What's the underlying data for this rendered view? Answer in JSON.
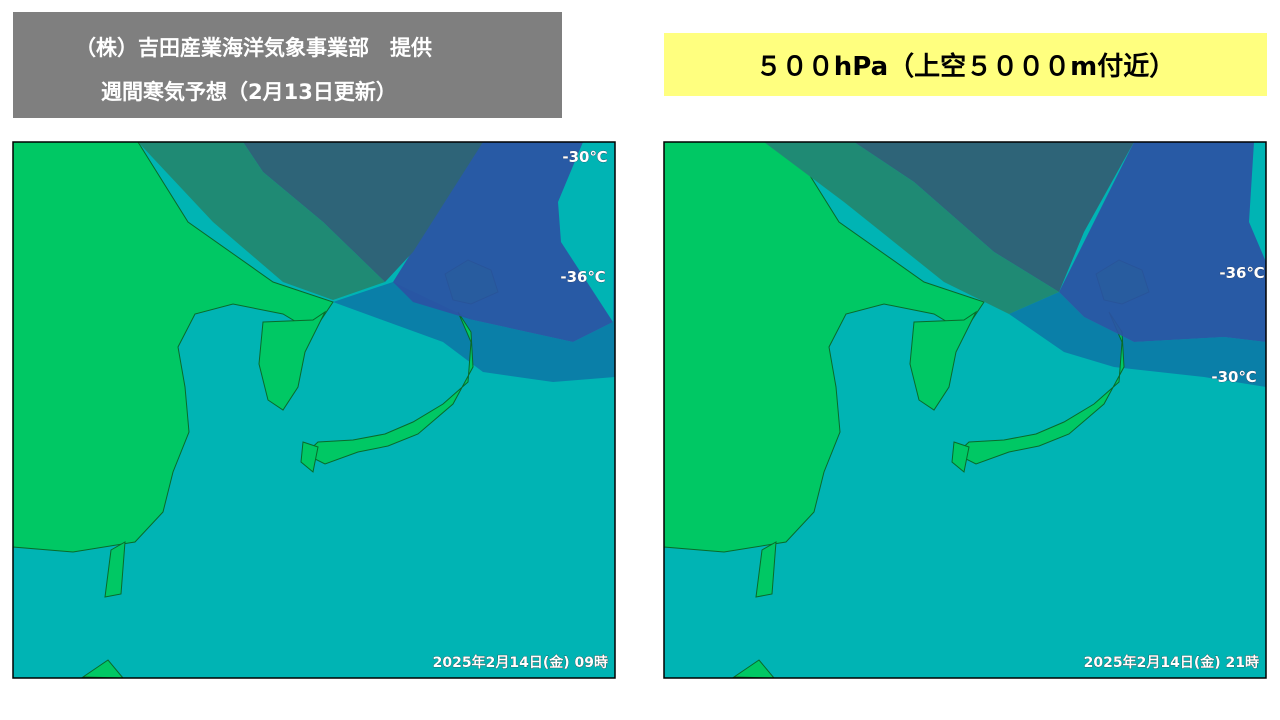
{
  "header": {
    "provider": "（株）吉田産業海洋気象事業部　提供",
    "subtitle": "週間寒気予想（2月13日更新）"
  },
  "level_banner": "５００hPa（上空５０００m付近）",
  "maps": [
    {
      "contour_labels": [
        "-30℃",
        "-36℃"
      ],
      "timestamp": "2025年2月14日(金) 09時"
    },
    {
      "contour_labels": [
        "-36℃",
        "-30℃"
      ],
      "timestamp": "2025年2月14日(金) 21時"
    }
  ]
}
